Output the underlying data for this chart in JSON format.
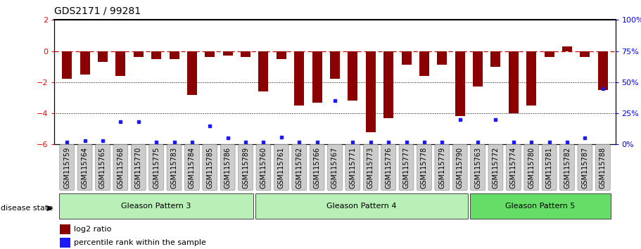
{
  "title": "GDS2171 / 99281",
  "samples": [
    "GSM115759",
    "GSM115764",
    "GSM115765",
    "GSM115768",
    "GSM115770",
    "GSM115775",
    "GSM115783",
    "GSM115784",
    "GSM115785",
    "GSM115786",
    "GSM115789",
    "GSM115760",
    "GSM115761",
    "GSM115762",
    "GSM115766",
    "GSM115767",
    "GSM115771",
    "GSM115773",
    "GSM115776",
    "GSM115777",
    "GSM115778",
    "GSM115779",
    "GSM115790",
    "GSM115763",
    "GSM115772",
    "GSM115774",
    "GSM115780",
    "GSM115781",
    "GSM115782",
    "GSM115787",
    "GSM115788"
  ],
  "log2_ratio": [
    -1.8,
    -1.5,
    -0.7,
    -1.6,
    -0.4,
    -0.5,
    -0.5,
    -2.8,
    -0.4,
    -0.3,
    -0.4,
    -2.6,
    -0.5,
    -3.5,
    -3.3,
    -1.8,
    -3.2,
    -5.2,
    -4.3,
    -0.9,
    -1.6,
    -0.9,
    -4.2,
    -2.3,
    -1.0,
    -4.0,
    -3.5,
    -0.4,
    0.3,
    -0.4,
    -2.5
  ],
  "percentile": [
    2,
    3,
    3,
    18,
    18,
    2,
    2,
    2,
    15,
    5,
    2,
    2,
    6,
    2,
    2,
    35,
    2,
    2,
    2,
    2,
    2,
    2,
    20,
    2,
    20,
    2,
    2,
    2,
    2,
    5,
    45
  ],
  "group_ends": [
    11,
    23,
    31
  ],
  "group_labels": [
    "Gleason Pattern 3",
    "Gleason Pattern 4",
    "Gleason Pattern 5"
  ],
  "group_colors": [
    "#b8f0b8",
    "#b8f0b8",
    "#66dd66"
  ],
  "ylim_left": [
    -6,
    2
  ],
  "ylim_right": [
    0,
    100
  ],
  "yticks_left": [
    -6,
    -4,
    -2,
    0,
    2
  ],
  "yticks_right": [
    0,
    25,
    50,
    75,
    100
  ],
  "bar_color": "#8B0000",
  "dot_color": "#1a1aff",
  "ref_line_color": "#CC0000",
  "dot_line_y": [
    -2,
    -4
  ],
  "background_color": "#FFFFFF",
  "title_fontsize": 10,
  "tick_fontsize": 7,
  "group_fontsize": 8
}
